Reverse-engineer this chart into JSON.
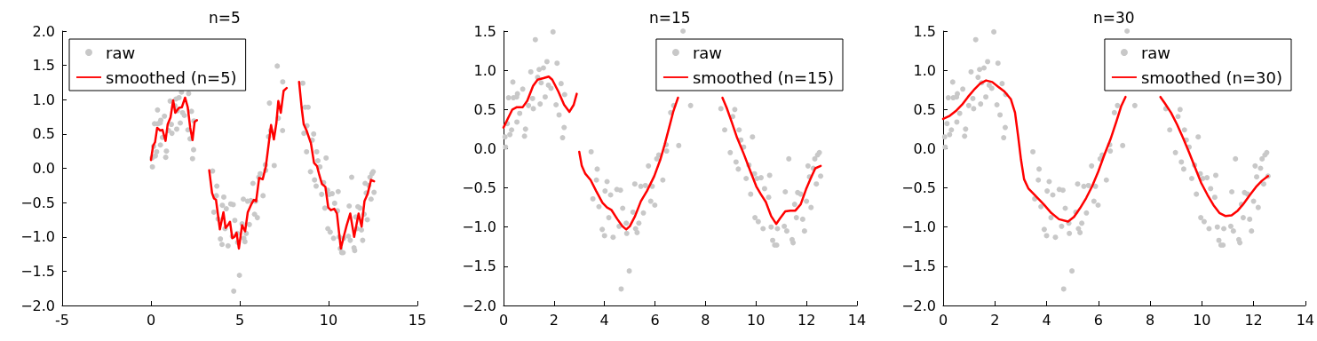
{
  "chart_data": [
    {
      "type": "scatter",
      "title": "n=5",
      "xlim": [
        -5,
        15
      ],
      "xticks": [
        -5,
        0,
        5,
        10,
        15
      ],
      "ylim": [
        -2.0,
        2.0
      ],
      "yticks": [
        {
          "value": -2,
          "label": "−2.0"
        },
        {
          "value": -1.5,
          "label": "−1.5"
        },
        {
          "value": -1,
          "label": "−1.0"
        },
        {
          "value": -0.5,
          "label": "−0.5"
        },
        {
          "value": 0,
          "label": "0.0"
        },
        {
          "value": 0.5,
          "label": "0.5"
        },
        {
          "value": 1,
          "label": "1.0"
        },
        {
          "value": 1.5,
          "label": "1.5"
        },
        {
          "value": 2,
          "label": "2.0"
        }
      ],
      "grid": false,
      "legend": "top left",
      "series": [
        {
          "name": "raw",
          "type": "scatter",
          "marker": "circle",
          "color": "#c8c8c8",
          "x": [
            1.72,
            2.12,
            1.08,
            1.41,
            1.58,
            1.35,
            1.78,
            1.88,
            1.49,
            2.28,
            0.37,
            0.2,
            0.39,
            0.55,
            0.76,
            0.52,
            1.15,
            0.99,
            1.18,
            1.45,
            1.65,
            2.08,
            2.42,
            2.2,
            0.64,
            0.53,
            0.15,
            0.32,
            0.25,
            0.87,
            0.83,
            0.06,
            0.08,
            2.4,
            2.34,
            3.47,
            3.71,
            3.68,
            4.1,
            4.02,
            4.24,
            4.49,
            4.63,
            3.54,
            3.78,
            4.17,
            3.91,
            4.0,
            4.34,
            4.58,
            4.72,
            4.86,
            4.88,
            5.13,
            5.2,
            5.23,
            5.29,
            5.36,
            5.44,
            5.54,
            5.62,
            5.74,
            5.83,
            5.89,
            5.99,
            6.07,
            6.15,
            6.31,
            6.46,
            6.44,
            6.62,
            6.74,
            6.94,
            4.98,
            4.66,
            7.41,
            8.61,
            8.76,
            9.08,
            9.16,
            9.33,
            9.4,
            9.51,
            9.86,
            8.98,
            9.21,
            9.3,
            9.61,
            9.72,
            9.79,
            9.94,
            10.04,
            10.2,
            10.34,
            10.5,
            10.54,
            9.96,
            10.09,
            10.28,
            10.6,
            10.66,
            10.74,
            10.82,
            10.85,
            11.12,
            11.22,
            11.16,
            11.3,
            11.43,
            11.47,
            11.53,
            11.6,
            11.65,
            11.77,
            11.85,
            11.92,
            12.0,
            12.06,
            12.12,
            12.18,
            12.27,
            12.33,
            12.39,
            12.44,
            12.51,
            12.56,
            7.11,
            6.67,
            7.17,
            7.42,
            8.55,
            8.68,
            8.85,
            8.78
          ],
          "values": [
            1.11,
            1.09,
            0.98,
            1.01,
            1.03,
            0.91,
            0.81,
            0.77,
            0.84,
            0.83,
            0.85,
            0.65,
            0.65,
            0.7,
            0.76,
            0.66,
            0.64,
            0.55,
            0.51,
            0.57,
            0.66,
            0.56,
            0.69,
            0.43,
            0.45,
            0.34,
            0.32,
            0.24,
            0.18,
            0.25,
            0.16,
            0.15,
            0.02,
            0.27,
            0.14,
            -0.04,
            -0.26,
            -0.4,
            -0.42,
            -0.54,
            -0.59,
            -0.52,
            -0.53,
            -0.64,
            -0.74,
            -0.88,
            -1.03,
            -1.11,
            -1.13,
            -0.99,
            -0.76,
            -0.95,
            -1.08,
            -0.81,
            -0.45,
            -1.02,
            -1.07,
            -0.95,
            -0.48,
            -0.82,
            -0.47,
            -0.22,
            -0.67,
            -0.48,
            -0.72,
            -0.13,
            -0.08,
            -0.4,
            -0.03,
            0.05,
            0.46,
            0.55,
            0.04,
            -1.56,
            -1.79,
            0.55,
            0.51,
            0.24,
            0.41,
            0.5,
            0.24,
            0.11,
            0.02,
            0.15,
            -0.05,
            -0.17,
            -0.26,
            -0.38,
            -0.21,
            -0.58,
            -0.32,
            -0.38,
            -0.37,
            -0.51,
            -0.62,
            -0.34,
            -0.88,
            -0.93,
            -1.02,
            -1.0,
            -1.17,
            -1.23,
            -1.23,
            -1.02,
            -0.99,
            -1.05,
            -0.55,
            -0.13,
            -1.16,
            -1.2,
            -0.71,
            -0.88,
            -0.56,
            -0.58,
            -0.9,
            -1.05,
            -0.67,
            -0.22,
            -0.36,
            -0.75,
            -0.25,
            -0.13,
            -0.45,
            -0.08,
            -0.05,
            -0.35,
            1.49,
            0.95,
            0.73,
            1.26,
            1.24,
            0.89,
            0.89,
            0.62
          ]
        },
        {
          "name": "smoothed (n=5)",
          "type": "line",
          "marker": "none",
          "color": "#ff0000",
          "x": [
            0,
            0.12,
            0.23,
            0.35,
            0.52,
            0.65,
            0.82,
            0.94,
            1.1,
            1.25,
            1.37,
            1.57,
            1.74,
            1.92,
            2.07,
            2.21,
            2.34,
            2.46,
            2.59,
            2.9,
            3.28,
            3.44,
            3.55,
            3.66,
            3.88,
            4.08,
            4.2,
            4.33,
            4.45,
            4.58,
            4.7,
            4.82,
            4.95,
            5.13,
            5.3,
            5.45,
            5.64,
            5.79,
            5.92,
            6.09,
            6.29,
            6.47,
            6.64,
            6.76,
            6.92,
            7.06,
            7.17,
            7.31,
            7.47,
            7.64,
            8.0,
            8.34,
            8.48,
            8.6,
            8.76,
            9.01,
            9.18,
            9.35,
            9.48,
            9.63,
            9.82,
            9.98,
            10.13,
            10.32,
            10.47,
            10.69,
            10.85,
            11.02,
            11.22,
            11.44,
            11.69,
            11.86,
            12.02,
            12.19,
            12.39,
            12.56
          ],
          "values": [
            0.12,
            0.33,
            0.38,
            0.59,
            0.55,
            0.56,
            0.4,
            0.64,
            0.74,
            0.99,
            0.81,
            0.88,
            0.89,
            1.03,
            0.89,
            0.59,
            0.41,
            0.68,
            0.7,
            null,
            -0.03,
            -0.36,
            -0.44,
            -0.46,
            -0.89,
            -0.64,
            -0.87,
            -0.83,
            -0.78,
            -1.02,
            -1.0,
            -0.94,
            -1.17,
            -0.83,
            -0.92,
            -0.64,
            -0.53,
            -0.46,
            -0.48,
            -0.14,
            -0.16,
            0.03,
            0.38,
            0.63,
            0.42,
            0.66,
            0.98,
            0.81,
            1.13,
            1.17,
            null,
            1.26,
            0.89,
            0.64,
            0.55,
            0.36,
            0.08,
            0.03,
            -0.1,
            -0.23,
            -0.27,
            -0.57,
            -0.61,
            -0.59,
            -0.66,
            -1.17,
            -1.0,
            -0.83,
            -0.66,
            -1.0,
            -0.66,
            -0.85,
            -0.48,
            -0.38,
            -0.17,
            -0.19
          ]
        }
      ]
    },
    {
      "type": "scatter",
      "title": "n=15",
      "xlim": [
        0,
        14
      ],
      "xticks": [
        0,
        2,
        4,
        6,
        8,
        10,
        12,
        14
      ],
      "ylim": [
        -2.0,
        1.5
      ],
      "yticks": [
        {
          "value": -2,
          "label": "−2.0"
        },
        {
          "value": -1.5,
          "label": "−1.5"
        },
        {
          "value": -1,
          "label": "−1.0"
        },
        {
          "value": -0.5,
          "label": "−0.5"
        },
        {
          "value": 0,
          "label": "0.0"
        },
        {
          "value": 0.5,
          "label": "0.5"
        },
        {
          "value": 1,
          "label": "1.0"
        },
        {
          "value": 1.5,
          "label": "1.5"
        }
      ],
      "grid": false,
      "legend": "top right",
      "series": [
        {
          "name": "raw",
          "type": "scatter",
          "marker": "circle",
          "color": "#c8c8c8",
          "x": [
            1.96,
            1.26,
            7.11,
            1.72,
            2.12,
            1.08,
            1.41,
            1.58,
            1.35,
            1.78,
            1.88,
            1.49,
            2.28,
            0.37,
            0.2,
            0.39,
            0.55,
            0.76,
            0.52,
            1.15,
            0.99,
            1.18,
            1.45,
            1.65,
            2.08,
            2.42,
            2.2,
            0.64,
            0.53,
            0.15,
            0.32,
            0.25,
            0.87,
            0.83,
            0.06,
            0.08,
            2.4,
            2.34,
            3.47,
            3.71,
            3.68,
            4.1,
            4.02,
            4.24,
            4.49,
            4.63,
            3.54,
            3.78,
            4.17,
            3.91,
            4.0,
            4.34,
            4.58,
            4.72,
            4.86,
            4.88,
            5.13,
            5.2,
            5.23,
            5.29,
            5.36,
            5.44,
            5.54,
            5.62,
            5.74,
            5.83,
            5.89,
            5.99,
            6.07,
            6.15,
            6.31,
            6.46,
            6.44,
            6.62,
            6.74,
            6.94,
            4.98,
            4.66,
            7.41,
            8.61,
            8.76,
            9.08,
            9.16,
            9.33,
            9.4,
            9.51,
            9.86,
            8.98,
            9.21,
            9.3,
            9.61,
            9.72,
            9.79,
            9.94,
            10.04,
            10.2,
            10.34,
            10.5,
            10.54,
            9.96,
            10.09,
            10.28,
            10.6,
            10.66,
            10.74,
            10.82,
            10.85,
            11.12,
            11.22,
            11.16,
            11.3,
            11.43,
            11.47,
            11.53,
            11.6,
            11.65,
            11.77,
            11.85,
            11.92,
            12.0,
            12.06,
            12.12,
            12.18,
            12.27,
            12.33,
            12.39,
            12.44,
            12.51,
            12.56
          ],
          "values": [
            1.49,
            1.39,
            1.5,
            1.11,
            1.09,
            0.98,
            1.01,
            1.03,
            0.91,
            0.81,
            0.77,
            0.84,
            0.83,
            0.85,
            0.65,
            0.65,
            0.7,
            0.76,
            0.66,
            0.64,
            0.55,
            0.51,
            0.57,
            0.66,
            0.56,
            0.69,
            0.43,
            0.45,
            0.34,
            0.32,
            0.24,
            0.18,
            0.25,
            0.16,
            0.15,
            0.02,
            0.27,
            0.14,
            -0.04,
            -0.26,
            -0.4,
            -0.42,
            -0.54,
            -0.59,
            -0.52,
            -0.53,
            -0.64,
            -0.74,
            -0.88,
            -1.03,
            -1.11,
            -1.13,
            -0.99,
            -0.76,
            -0.95,
            -1.08,
            -0.81,
            -0.45,
            -1.02,
            -1.07,
            -0.95,
            -0.48,
            -0.82,
            -0.47,
            -0.22,
            -0.67,
            -0.48,
            -0.72,
            -0.13,
            -0.08,
            -0.4,
            -0.03,
            0.05,
            0.46,
            0.55,
            0.04,
            -1.56,
            -1.79,
            0.55,
            0.51,
            0.24,
            0.41,
            0.5,
            0.24,
            0.11,
            0.02,
            0.15,
            -0.05,
            -0.17,
            -0.26,
            -0.38,
            -0.21,
            -0.58,
            -0.32,
            -0.38,
            -0.37,
            -0.51,
            -0.62,
            -0.34,
            -0.88,
            -0.93,
            -1.02,
            -1.0,
            -1.17,
            -1.23,
            -1.23,
            -1.02,
            -0.99,
            -1.05,
            -0.55,
            -0.13,
            -1.16,
            -1.2,
            -0.71,
            -0.88,
            -0.56,
            -0.58,
            -0.9,
            -1.05,
            -0.67,
            -0.22,
            -0.36,
            -0.75,
            -0.25,
            -0.13,
            -0.45,
            -0.08,
            -0.05,
            -0.35
          ]
        },
        {
          "name": "smoothed (n=15)",
          "type": "line",
          "marker": "none",
          "color": "#ff0000",
          "x": [
            0,
            0.18,
            0.35,
            0.53,
            0.76,
            0.94,
            1.17,
            1.35,
            1.58,
            1.79,
            1.93,
            2.17,
            2.4,
            2.61,
            2.78,
            2.9,
            2.95,
            3.0,
            3.1,
            3.24,
            3.45,
            3.67,
            3.92,
            4.1,
            4.27,
            4.51,
            4.71,
            4.86,
            5.0,
            5.21,
            5.44,
            5.68,
            5.97,
            6.21,
            6.38,
            6.56,
            6.73,
            6.91,
            7.8,
            8.67,
            8.84,
            9.05,
            9.25,
            9.52,
            9.78,
            10.01,
            10.19,
            10.39,
            10.6,
            10.8,
            10.95,
            11.16,
            11.36,
            11.56,
            11.77,
            11.98,
            12.18,
            12.35,
            12.56
          ],
          "values": [
            0.27,
            0.39,
            0.5,
            0.53,
            0.53,
            0.61,
            0.8,
            0.88,
            0.9,
            0.92,
            0.88,
            0.73,
            0.56,
            0.47,
            0.56,
            0.7,
            null,
            -0.04,
            -0.22,
            -0.32,
            -0.4,
            -0.54,
            -0.69,
            -0.75,
            -0.78,
            -0.9,
            -0.99,
            -1.03,
            -0.99,
            -0.86,
            -0.67,
            -0.54,
            -0.35,
            -0.14,
            0.05,
            0.27,
            0.48,
            0.65,
            null,
            0.65,
            0.52,
            0.33,
            0.14,
            -0.07,
            -0.29,
            -0.48,
            -0.58,
            -0.68,
            -0.86,
            -0.96,
            -0.89,
            -0.8,
            -0.79,
            -0.79,
            -0.71,
            -0.52,
            -0.37,
            -0.25,
            -0.22
          ]
        }
      ]
    },
    {
      "type": "scatter",
      "title": "n=30",
      "xlim": [
        0,
        14
      ],
      "xticks": [
        0,
        2,
        4,
        6,
        8,
        10,
        12,
        14
      ],
      "ylim": [
        -2.0,
        1.5
      ],
      "yticks": [
        {
          "value": -2,
          "label": "−2.0"
        },
        {
          "value": -1.5,
          "label": "−1.5"
        },
        {
          "value": -1,
          "label": "−1.0"
        },
        {
          "value": -0.5,
          "label": "−0.5"
        },
        {
          "value": 0,
          "label": "0.0"
        },
        {
          "value": 0.5,
          "label": "0.5"
        },
        {
          "value": 1,
          "label": "1.0"
        },
        {
          "value": 1.5,
          "label": "1.5"
        }
      ],
      "grid": false,
      "legend": "top right",
      "series": [
        {
          "name": "raw",
          "type": "scatter",
          "marker": "circle",
          "color": "#c8c8c8",
          "x": [
            1.96,
            1.26,
            7.11,
            1.72,
            2.12,
            1.08,
            1.41,
            1.58,
            1.35,
            1.78,
            1.88,
            1.49,
            2.28,
            0.37,
            0.2,
            0.39,
            0.55,
            0.76,
            0.52,
            1.15,
            0.99,
            1.18,
            1.45,
            1.65,
            2.08,
            2.42,
            2.2,
            0.64,
            0.53,
            0.15,
            0.32,
            0.25,
            0.87,
            0.83,
            0.06,
            0.08,
            2.4,
            2.34,
            3.47,
            3.71,
            3.68,
            4.1,
            4.02,
            4.24,
            4.49,
            4.63,
            3.54,
            3.78,
            4.17,
            3.91,
            4.0,
            4.34,
            4.58,
            4.72,
            4.86,
            4.88,
            5.13,
            5.2,
            5.23,
            5.29,
            5.36,
            5.44,
            5.54,
            5.62,
            5.74,
            5.83,
            5.89,
            5.99,
            6.07,
            6.15,
            6.31,
            6.46,
            6.44,
            6.62,
            6.74,
            6.94,
            4.98,
            4.66,
            7.41,
            8.61,
            8.76,
            9.08,
            9.16,
            9.33,
            9.4,
            9.51,
            9.86,
            8.98,
            9.21,
            9.3,
            9.61,
            9.72,
            9.79,
            9.94,
            10.04,
            10.2,
            10.34,
            10.5,
            10.54,
            9.96,
            10.09,
            10.28,
            10.6,
            10.66,
            10.74,
            10.82,
            10.85,
            11.12,
            11.22,
            11.16,
            11.3,
            11.43,
            11.47,
            11.53,
            11.6,
            11.65,
            11.77,
            11.85,
            11.92,
            12.0,
            12.06,
            12.12,
            12.18,
            12.27,
            12.33,
            12.39,
            12.44,
            12.51,
            12.56
          ],
          "values": [
            1.49,
            1.39,
            1.5,
            1.11,
            1.09,
            0.98,
            1.01,
            1.03,
            0.91,
            0.81,
            0.77,
            0.84,
            0.83,
            0.85,
            0.65,
            0.65,
            0.7,
            0.76,
            0.66,
            0.64,
            0.55,
            0.51,
            0.57,
            0.66,
            0.56,
            0.69,
            0.43,
            0.45,
            0.34,
            0.32,
            0.24,
            0.18,
            0.25,
            0.16,
            0.15,
            0.02,
            0.27,
            0.14,
            -0.04,
            -0.26,
            -0.4,
            -0.42,
            -0.54,
            -0.59,
            -0.52,
            -0.53,
            -0.64,
            -0.74,
            -0.88,
            -1.03,
            -1.11,
            -1.13,
            -0.99,
            -0.76,
            -0.95,
            -1.08,
            -0.81,
            -0.45,
            -1.02,
            -1.07,
            -0.95,
            -0.48,
            -0.82,
            -0.47,
            -0.22,
            -0.67,
            -0.48,
            -0.72,
            -0.13,
            -0.08,
            -0.4,
            -0.03,
            0.05,
            0.46,
            0.55,
            0.04,
            -1.56,
            -1.79,
            0.55,
            0.51,
            0.24,
            0.41,
            0.5,
            0.24,
            0.11,
            0.02,
            0.15,
            -0.05,
            -0.17,
            -0.26,
            -0.38,
            -0.21,
            -0.58,
            -0.32,
            -0.38,
            -0.37,
            -0.51,
            -0.62,
            -0.34,
            -0.88,
            -0.93,
            -1.02,
            -1.0,
            -1.17,
            -1.23,
            -1.23,
            -1.02,
            -0.99,
            -1.05,
            -0.55,
            -0.13,
            -1.16,
            -1.2,
            -0.71,
            -0.88,
            -0.56,
            -0.58,
            -0.9,
            -1.05,
            -0.67,
            -0.22,
            -0.36,
            -0.75,
            -0.25,
            -0.13,
            -0.45,
            -0.08,
            -0.05,
            -0.35
          ]
        },
        {
          "name": "smoothed (n=30)",
          "type": "line",
          "marker": "none",
          "color": "#ff0000",
          "x": [
            0,
            0.26,
            0.49,
            0.73,
            0.96,
            1.19,
            1.43,
            1.66,
            1.9,
            2.13,
            2.37,
            2.62,
            2.78,
            2.9,
            3.01,
            3.13,
            3.3,
            3.6,
            3.89,
            4.18,
            4.48,
            4.83,
            5.06,
            5.29,
            5.53,
            5.76,
            6.0,
            6.23,
            6.47,
            6.7,
            6.88,
            7.05,
            7.7,
            8.4,
            8.57,
            8.81,
            9.04,
            9.27,
            9.51,
            9.75,
            9.98,
            10.22,
            10.45,
            10.68,
            10.92,
            11.15,
            11.39,
            11.62,
            11.86,
            12.09,
            12.32,
            12.56
          ],
          "values": [
            0.38,
            0.42,
            0.48,
            0.56,
            0.66,
            0.75,
            0.83,
            0.87,
            0.85,
            0.79,
            0.73,
            0.63,
            0.46,
            0.16,
            -0.14,
            -0.39,
            -0.51,
            -0.61,
            -0.71,
            -0.82,
            -0.9,
            -0.93,
            -0.87,
            -0.76,
            -0.63,
            -0.48,
            -0.29,
            -0.08,
            0.12,
            0.35,
            0.54,
            0.66,
            null,
            0.66,
            0.58,
            0.46,
            0.31,
            0.14,
            -0.05,
            -0.25,
            -0.44,
            -0.59,
            -0.72,
            -0.82,
            -0.86,
            -0.85,
            -0.79,
            -0.7,
            -0.59,
            -0.49,
            -0.41,
            -0.35
          ]
        }
      ]
    }
  ]
}
